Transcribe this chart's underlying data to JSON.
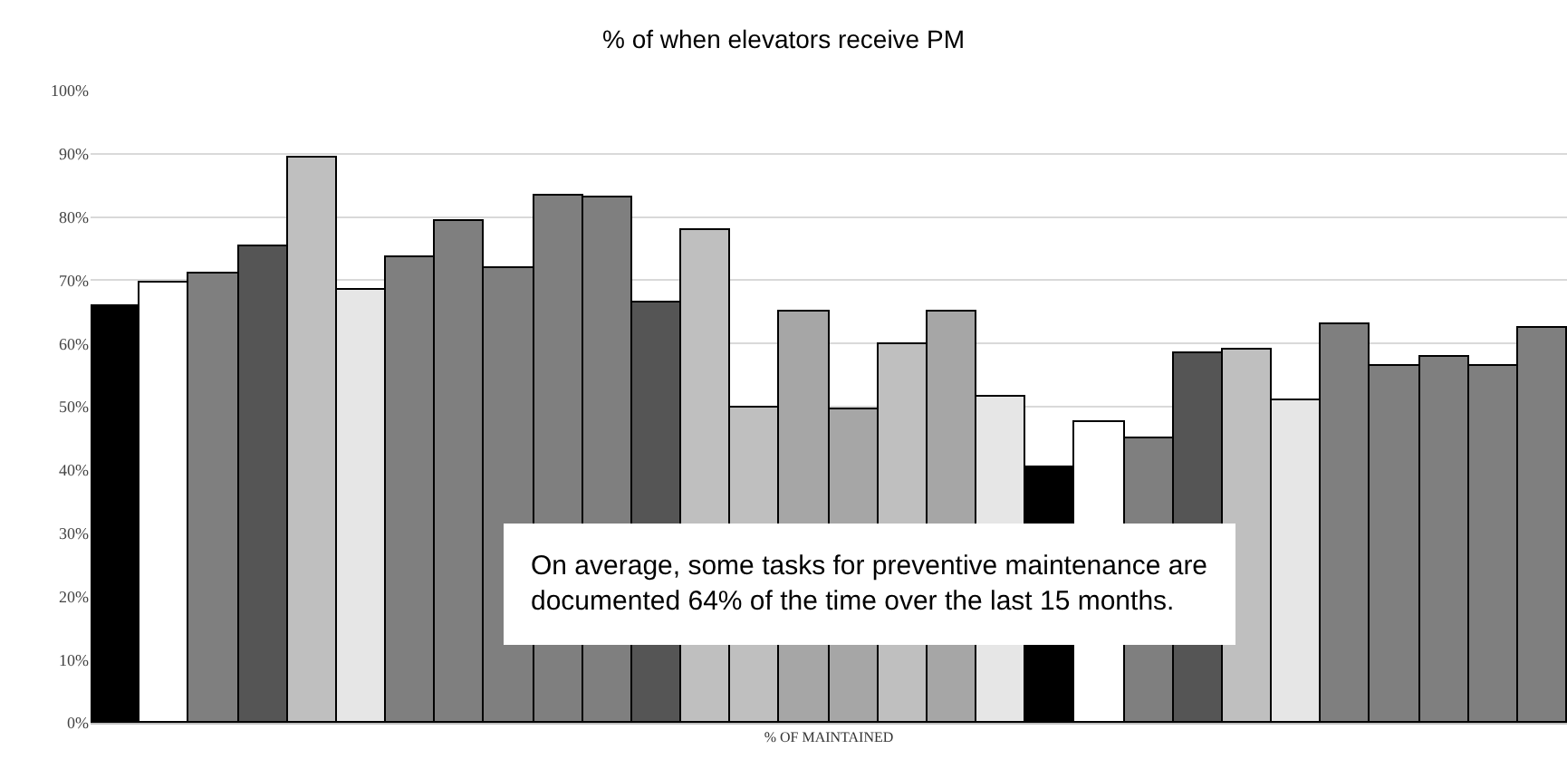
{
  "chart_data": {
    "type": "bar",
    "title": "% of when elevators receive PM",
    "xlabel": "% OF MAINTAINED",
    "categories": [
      null,
      null,
      null,
      null,
      null,
      null,
      null,
      null,
      null,
      null,
      null,
      null,
      null,
      null,
      null,
      null,
      null,
      null,
      null,
      null,
      null,
      null,
      null,
      null,
      null,
      null,
      null,
      null,
      null,
      null
    ],
    "values": [
      66,
      69.5,
      71,
      75.5,
      89.5,
      68.5,
      73.5,
      79.5,
      72,
      83.5,
      83,
      66.5,
      78,
      50,
      65,
      49.5,
      60,
      65,
      51.5,
      40.5,
      47.5,
      45,
      58.5,
      59,
      51,
      63,
      56.5,
      58,
      56.5,
      62.5
    ],
    "colors": [
      "#000000",
      "#ffffff",
      "#7f7f7f",
      "#555555",
      "#bfbfbf",
      "#e6e6e6",
      "#7f7f7f",
      "#7f7f7f",
      "#7f7f7f",
      "#7f7f7f",
      "#7f7f7f",
      "#555555",
      "#bfbfbf",
      "#bfbfbf",
      "#a6a6a6",
      "#a6a6a6",
      "#bfbfbf",
      "#a6a6a6",
      "#e6e6e6",
      "#000000",
      "#ffffff",
      "#7f7f7f",
      "#555555",
      "#bfbfbf",
      "#e6e6e6",
      "#7f7f7f",
      "#7f7f7f",
      "#7f7f7f",
      "#7f7f7f",
      "#7f7f7f"
    ],
    "ylim": [
      0,
      100
    ],
    "yticks": [
      {
        "value": 0,
        "label": "0%"
      },
      {
        "value": 10,
        "label": "10%"
      },
      {
        "value": 20,
        "label": "20%"
      },
      {
        "value": 30,
        "label": "30%"
      },
      {
        "value": 40,
        "label": "40%"
      },
      {
        "value": 50,
        "label": "50%"
      },
      {
        "value": 60,
        "label": "60%"
      },
      {
        "value": 70,
        "label": "70%"
      },
      {
        "value": 80,
        "label": "80%"
      },
      {
        "value": 90,
        "label": "90%"
      },
      {
        "value": 100,
        "label": "100%"
      }
    ],
    "grid": "y",
    "annotations": [
      "On average, some tasks for preventive maintenance are documented 64% of the time over the last 15 months."
    ]
  }
}
